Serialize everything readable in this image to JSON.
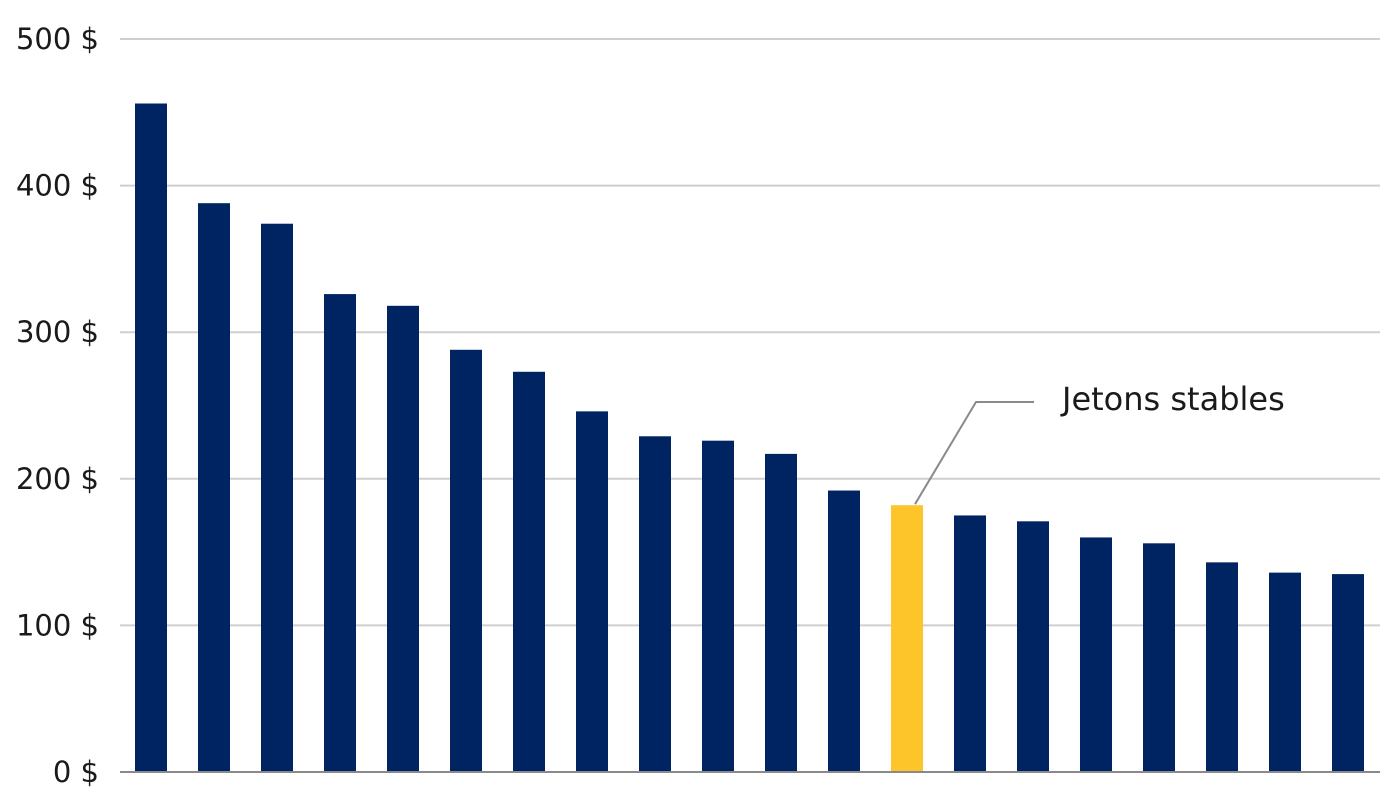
{
  "chart_data": {
    "type": "bar",
    "title": "",
    "xlabel": "",
    "ylabel": "",
    "ylim": [
      0,
      500
    ],
    "yticks": [
      0,
      100,
      200,
      300,
      400,
      500
    ],
    "ytick_labels": [
      "0 $",
      "100 $",
      "200 $",
      "300 $",
      "400 $",
      "500 $"
    ],
    "grid": true,
    "values": [
      456,
      388,
      374,
      326,
      318,
      288,
      273,
      246,
      229,
      226,
      217,
      192,
      182,
      175,
      171,
      160,
      156,
      143,
      136,
      135
    ],
    "highlight_index": 12,
    "annotation": {
      "text": "Jetons stables",
      "target_index": 12
    }
  },
  "colors": {
    "bar": "#002361",
    "highlight": "#fdc52a",
    "grid": "#cfcfcf",
    "baseline": "#8a8a8a"
  }
}
